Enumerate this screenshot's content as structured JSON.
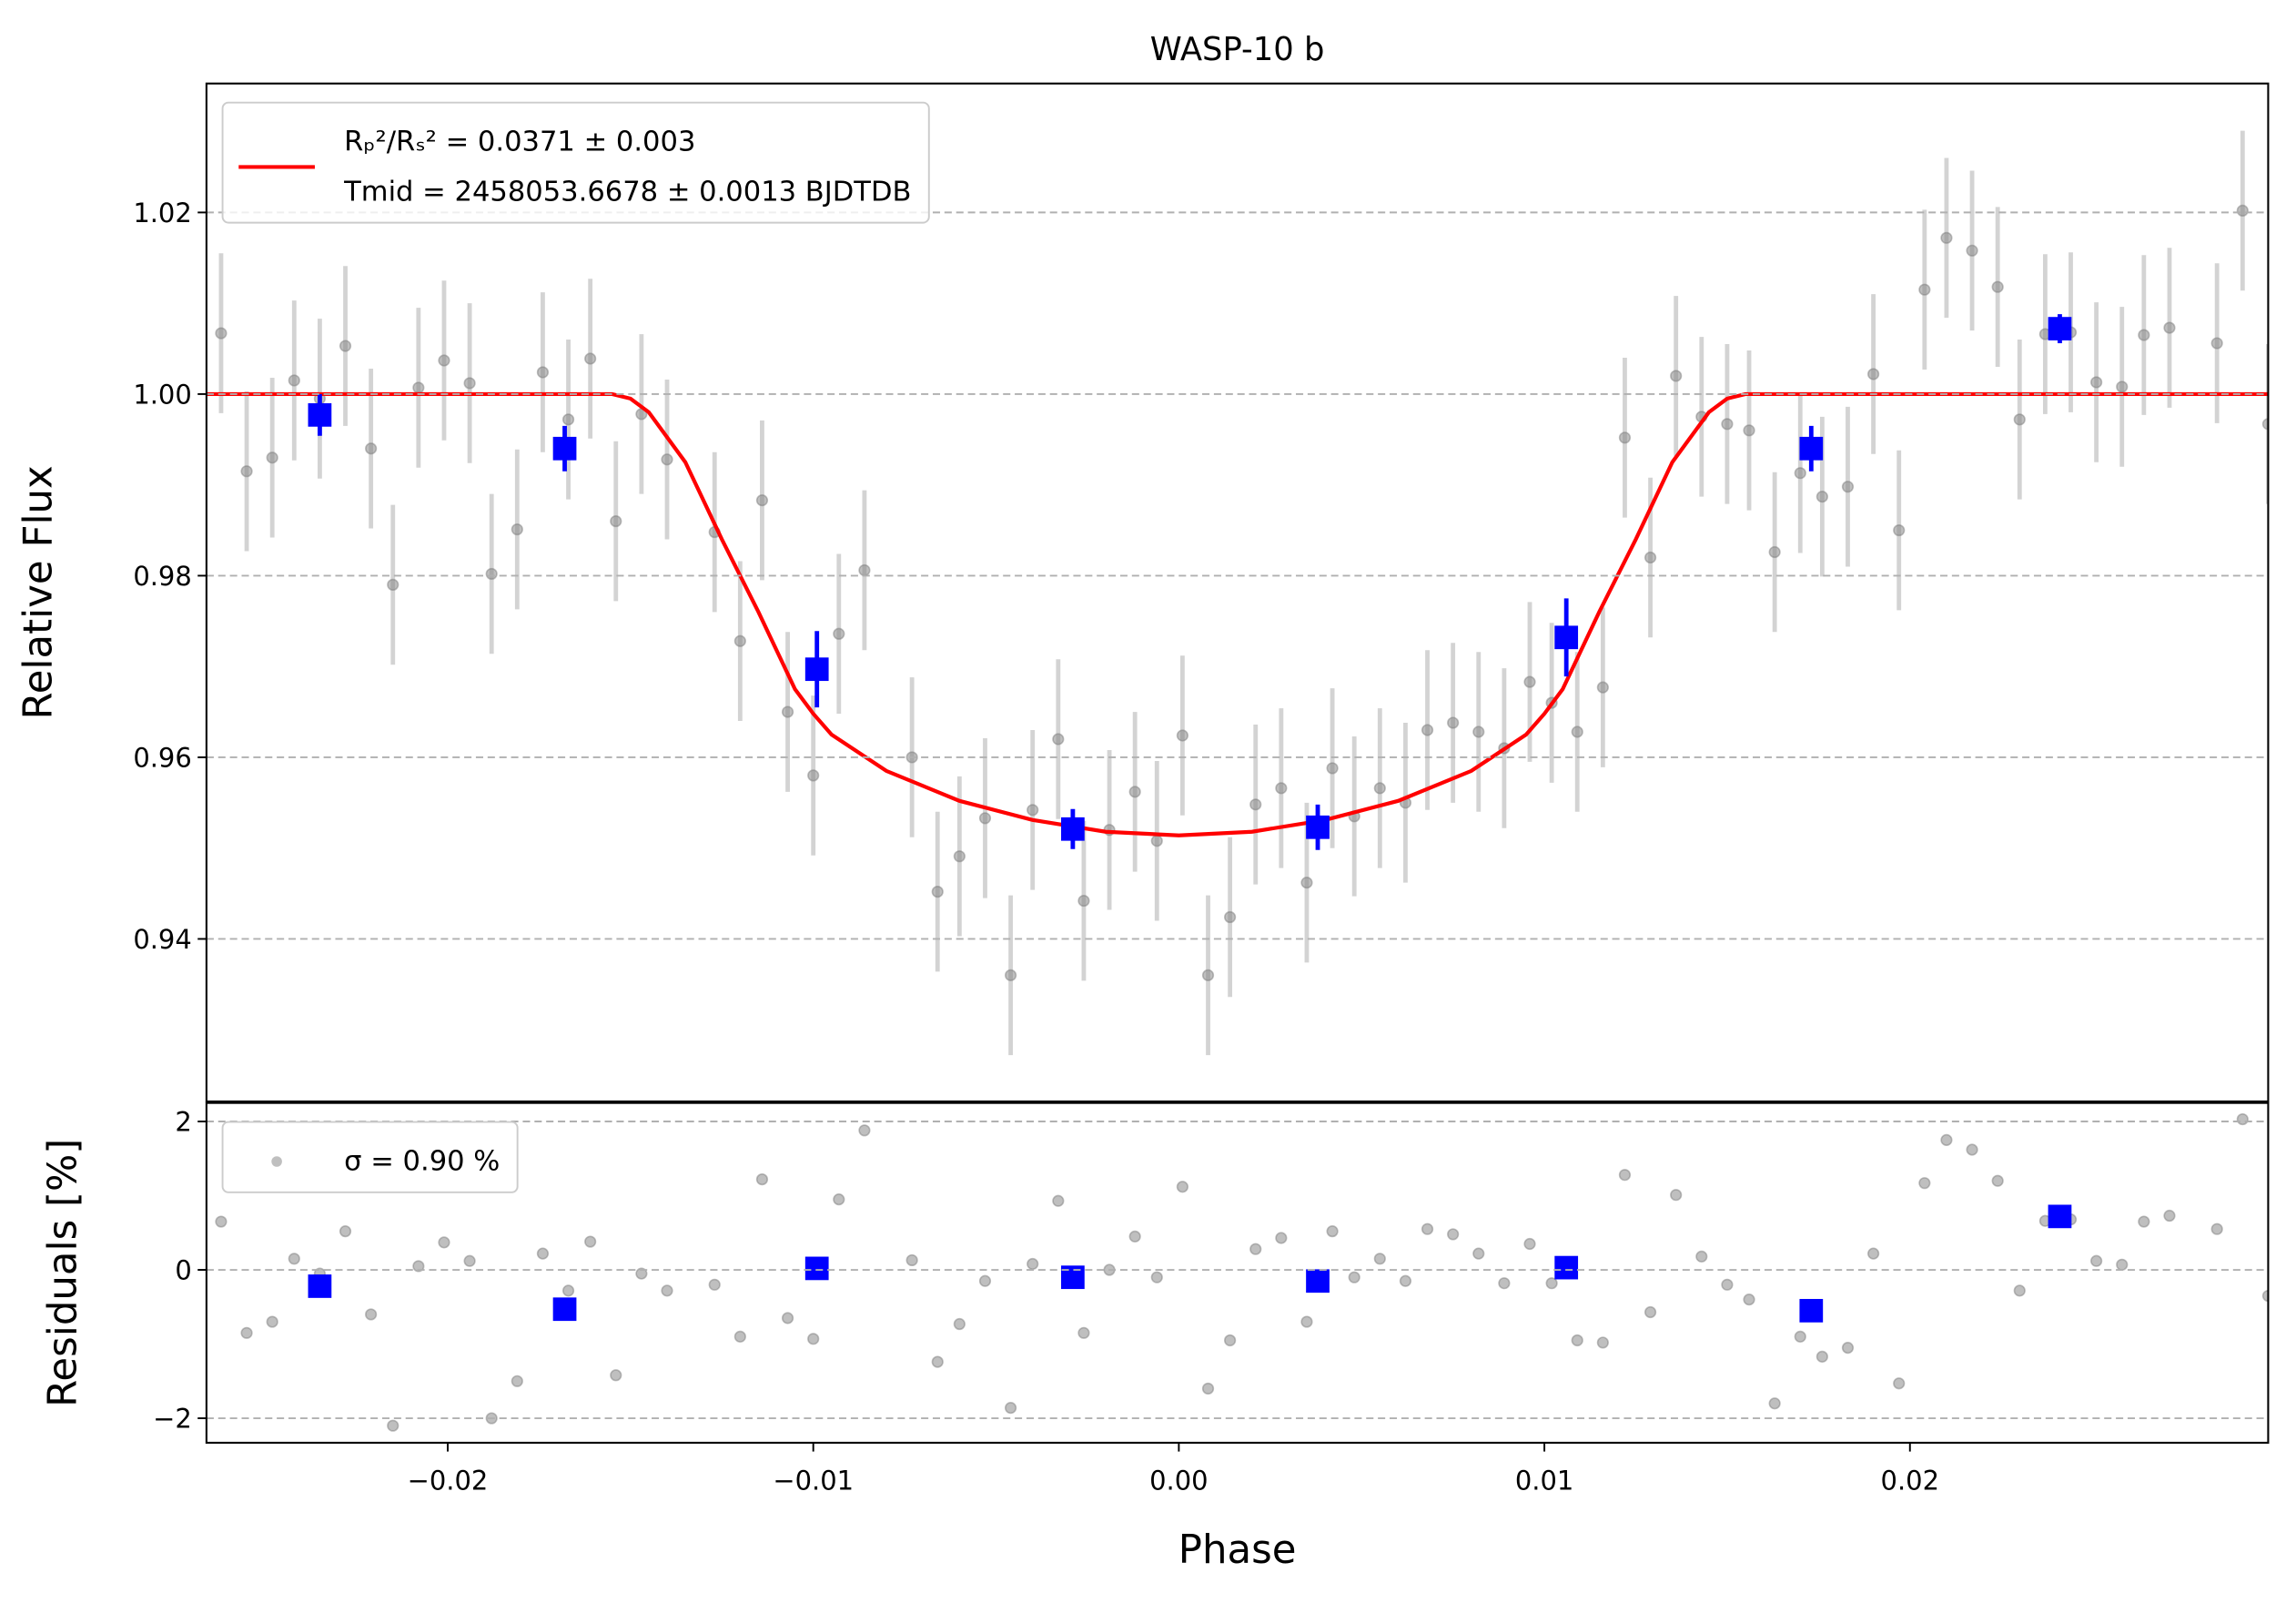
{
  "chart_data": [
    {
      "type": "scatter",
      "title": "WASP-10 b",
      "y_label": "Relative Flux",
      "xlim": [
        -0.0266,
        0.0298
      ],
      "ylim": [
        0.9221,
        1.0342
      ],
      "yticks": [
        0.94,
        0.96,
        0.98,
        {
          "value": 1,
          "label": "1.00"
        },
        1.02
      ],
      "grid": true,
      "legend": "upper left",
      "series": [
        {
          "color": "gray",
          "ecolor": "lightgray",
          "marker": "o",
          "yerr": 0.0088,
          "x": [
            -0.0262,
            -0.0255,
            -0.0248,
            -0.0242,
            -0.0235,
            -0.0228,
            -0.0221,
            -0.0215,
            -0.0208,
            -0.0201,
            -0.0194,
            -0.0188,
            -0.0181,
            -0.0174,
            -0.0167,
            -0.0161,
            -0.0154,
            -0.0147,
            -0.014,
            -0.0127,
            -0.012,
            -0.0114,
            -0.0107,
            -0.01,
            -0.0093,
            -0.0086,
            -0.0073,
            -0.0066,
            -0.006,
            -0.0053,
            -0.0046,
            -0.004,
            -0.0033,
            -0.0026,
            -0.0019,
            -0.0012,
            -0.0006,
            0.0001,
            0.0008,
            0.0014,
            0.0021,
            0.0028,
            0.0035,
            0.0042,
            0.0048,
            0.0055,
            0.0062,
            0.0068,
            0.0075,
            0.0082,
            0.0089,
            0.0096,
            0.0102,
            0.0109,
            0.0116,
            0.0122,
            0.0129,
            0.0136,
            0.0143,
            0.015,
            0.0156,
            0.0163,
            0.017,
            0.0176,
            0.0183,
            0.019,
            0.0197,
            0.0204,
            0.021,
            0.0217,
            0.0224,
            0.023,
            0.0237,
            0.0244,
            0.0251,
            0.0258,
            0.0264,
            0.0271,
            0.0284,
            0.0291,
            0.0298
          ],
          "values": [
            1.0067,
            0.9915,
            0.993,
            1.0015,
            0.9995,
            1.0053,
            0.994,
            0.979,
            1.0007,
            1.0037,
            1.0012,
            0.9802,
            0.9851,
            1.0024,
            0.9972,
            1.0039,
            0.986,
            0.9978,
            0.9928,
            0.9848,
            0.9728,
            0.9883,
            0.965,
            0.958,
            0.9736,
            0.9806,
            0.96,
            0.9452,
            0.9491,
            0.9533,
            0.936,
            0.9542,
            0.962,
            0.9442,
            0.952,
            0.9562,
            0.9508,
            0.9624,
            0.936,
            0.9424,
            0.9548,
            0.9566,
            0.9462,
            0.9588,
            0.9535,
            0.9566,
            0.955,
            0.963,
            0.9638,
            0.9628,
            0.961,
            0.9683,
            0.966,
            0.9628,
            0.9677,
            0.9952,
            0.982,
            1.002,
            0.9975,
            0.9967,
            0.996,
            0.9826,
            0.9913,
            0.9887,
            0.9898,
            1.0022,
            0.985,
            1.0115,
            1.0172,
            1.0158,
            1.0118,
            0.9972,
            1.0066,
            1.0068,
            1.0013,
            1.0008,
            1.0065,
            1.0073,
            1.0056,
            1.0202,
            0.9967
          ]
        },
        {
          "type": "line",
          "name": [
            "Rₚ²/Rₛ² = 0.0371 ± 0.003",
            "Tmid = 2458053.6678 ± 0.0013 BJDTDB"
          ],
          "color": "#ff0000",
          "x": [
            -0.0266,
            -0.0155,
            -0.015,
            -0.0145,
            -0.0135,
            -0.0125,
            -0.0115,
            -0.0105,
            -0.01,
            -0.0095,
            -0.008,
            -0.006,
            -0.004,
            -0.002,
            0,
            0.002,
            0.004,
            0.006,
            0.008,
            0.0095,
            0.01,
            0.0105,
            0.0115,
            0.0125,
            0.0135,
            0.0145,
            0.015,
            0.0155,
            0.0298
          ],
          "values": [
            1,
            1,
            0.9995,
            0.998,
            0.9925,
            0.984,
            0.976,
            0.9675,
            0.9648,
            0.9625,
            0.9585,
            0.9552,
            0.9531,
            0.9518,
            0.9514,
            0.9518,
            0.9531,
            0.9552,
            0.9585,
            0.9625,
            0.9648,
            0.9675,
            0.976,
            0.984,
            0.9925,
            0.998,
            0.9995,
            1,
            1
          ]
        },
        {
          "color": "#0000ff",
          "ecolor": "#0000ff",
          "marker": "s",
          "x": [
            -0.0235,
            -0.0168,
            -0.0099,
            -0.0029,
            0.0038,
            0.0106,
            0.0173,
            0.0241
          ],
          "values": [
            0.9977,
            0.994,
            0.9697,
            0.9521,
            0.9523,
            0.9732,
            0.994,
            1.0072
          ],
          "yerr": [
            0.0023,
            0.0025,
            0.0042,
            0.0022,
            0.0025,
            0.0043,
            0.0025,
            0.0016
          ]
        }
      ]
    },
    {
      "type": "scatter",
      "x_label": "Phase",
      "y_label": "Residuals [%]",
      "xlim": [
        -0.0266,
        0.0298
      ],
      "ylim": [
        -2.33,
        2.25
      ],
      "xticks": [
        {
          "value": -0.02,
          "label": "−0.02"
        },
        {
          "value": -0.01,
          "label": "−0.01"
        },
        {
          "value": 0,
          "label": "0.00"
        },
        {
          "value": 0.01,
          "label": "0.01"
        },
        {
          "value": 0.02,
          "label": "0.02"
        }
      ],
      "yticks": [
        {
          "value": -2,
          "label": "−2"
        },
        0,
        2
      ],
      "grid": true,
      "legend": "upper left",
      "series": [
        {
          "name": "σ = 0.90 %",
          "color": "gray",
          "marker": "o",
          "x": [
            -0.0262,
            -0.0255,
            -0.0248,
            -0.0242,
            -0.0235,
            -0.0228,
            -0.0221,
            -0.0215,
            -0.0208,
            -0.0201,
            -0.0194,
            -0.0188,
            -0.0181,
            -0.0174,
            -0.0167,
            -0.0161,
            -0.0154,
            -0.0147,
            -0.014,
            -0.0127,
            -0.012,
            -0.0114,
            -0.0107,
            -0.01,
            -0.0093,
            -0.0086,
            -0.0073,
            -0.0066,
            -0.006,
            -0.0053,
            -0.0046,
            -0.004,
            -0.0033,
            -0.0026,
            -0.0019,
            -0.0012,
            -0.0006,
            0.0001,
            0.0008,
            0.0014,
            0.0021,
            0.0028,
            0.0035,
            0.0042,
            0.0048,
            0.0055,
            0.0062,
            0.0068,
            0.0075,
            0.0082,
            0.0089,
            0.0096,
            0.0102,
            0.0109,
            0.0116,
            0.0122,
            0.0129,
            0.0136,
            0.0143,
            0.015,
            0.0156,
            0.0163,
            0.017,
            0.0176,
            0.0183,
            0.019,
            0.0197,
            0.0204,
            0.021,
            0.0217,
            0.0224,
            0.023,
            0.0237,
            0.0244,
            0.0251,
            0.0258,
            0.0264,
            0.0271,
            0.0284,
            0.0291,
            0.0298
          ],
          "values": [
            0.65,
            -0.85,
            -0.7,
            0.15,
            -0.05,
            0.52,
            -0.6,
            -2.1,
            0.05,
            0.37,
            0.12,
            -2.0,
            -1.5,
            0.22,
            -0.28,
            0.38,
            -1.42,
            -0.05,
            -0.28,
            -0.2,
            -0.9,
            1.22,
            -0.65,
            -0.93,
            0.95,
            1.88,
            0.13,
            -1.24,
            -0.73,
            -0.15,
            -1.86,
            0.08,
            0.93,
            -0.85,
            0,
            0.45,
            -0.1,
            1.12,
            -1.6,
            -0.95,
            0.28,
            0.43,
            -0.7,
            0.52,
            -0.1,
            0.15,
            -0.15,
            0.55,
            0.48,
            0.22,
            -0.18,
            0.35,
            -0.18,
            -0.95,
            -0.98,
            1.28,
            -0.57,
            1.01,
            0.18,
            -0.2,
            -0.4,
            -1.8,
            -0.9,
            -1.17,
            -1.05,
            0.22,
            -1.53,
            1.17,
            1.75,
            1.62,
            1.2,
            -0.28,
            0.66,
            0.68,
            0.12,
            0.07,
            0.65,
            0.73,
            0.55,
            2.03,
            -0.35
          ]
        },
        {
          "color": "#0000ff",
          "marker": "s",
          "x": [
            -0.0235,
            -0.0168,
            -0.0099,
            -0.0029,
            0.0038,
            0.0106,
            0.0173,
            0.0241
          ],
          "values": [
            -0.22,
            -0.53,
            0.02,
            -0.1,
            -0.15,
            0.03,
            -0.55,
            0.72
          ]
        }
      ]
    }
  ]
}
